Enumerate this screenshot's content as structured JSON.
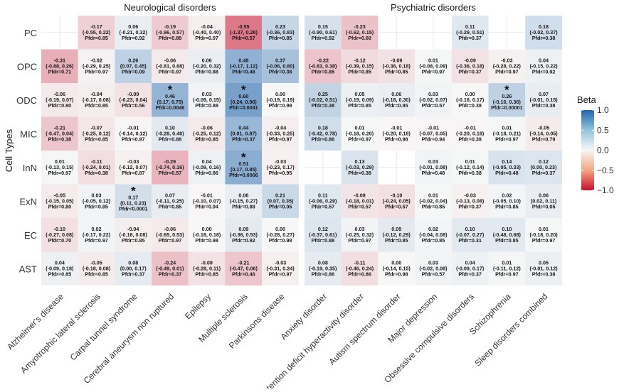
{
  "chart_data": {
    "type": "heatmap",
    "ylabel": "Cell Types",
    "panels": [
      {
        "title": "Neurological  disorders",
        "columns": [
          "Alzheimer's disease",
          "Amyotrophic lateral sclerosis",
          "Carpal tunnel syndrome",
          "Cerebral aneurysm non ruptured",
          "Epilepsy",
          "Multiple sclerosis",
          "Parkinsons disease"
        ]
      },
      {
        "title": "Psychiatric disorders",
        "columns": [
          "Anxiety disorder",
          "Attention deficit hyperactivity disorder",
          "Autism spectrum disorder",
          "Major depression",
          "Obsessive compulsive disorders",
          "Schizophrenia",
          "Sleep disorders combined"
        ]
      }
    ],
    "rows": [
      "PC",
      "OPC",
      "ODC",
      "MIC",
      "InN",
      "ExN",
      "EC",
      "AST"
    ],
    "legend": {
      "title": "Beta",
      "ticks": [
        "1.0",
        "0.5",
        "0.0",
        "−0.5",
        "−1.0"
      ],
      "range": [
        -1,
        1
      ],
      "low_color": "#c8102e",
      "mid_color": "#f7f7f7",
      "high_color": "#2166ac"
    },
    "grid": true,
    "cells": [
      {
        "row": "PC",
        "col": "Alzheimer's disease",
        "beta": null
      },
      {
        "row": "PC",
        "col": "Amyotrophic lateral sclerosis",
        "beta": -0.17,
        "ci": "(-0.55, 0.22)",
        "pfdr": "Pfdr=0.85"
      },
      {
        "row": "PC",
        "col": "Carpal tunnel syndrome",
        "beta": 0.06,
        "ci": "(-0.21, 0.32)",
        "pfdr": "Pfdr=0.92"
      },
      {
        "row": "PC",
        "col": "Cerebral aneurysm non ruptured",
        "beta": -0.19,
        "ci": "(-0.96, 0.57)",
        "pfdr": "Pfdr=0.88"
      },
      {
        "row": "PC",
        "col": "Epilepsy",
        "beta": -0.04,
        "ci": "(-0.40, 0.40)",
        "pfdr": "Pfdr=0.97"
      },
      {
        "row": "PC",
        "col": "Multiple sclerosis",
        "beta": -0.55,
        "ci": "(-1.37, 0.28)",
        "pfdr": "Pfdr=0.57"
      },
      {
        "row": "PC",
        "col": "Parkinsons disease",
        "beta": 0.23,
        "ci": "(-0.36, 0.83)",
        "pfdr": "Pfdr=0.85"
      },
      {
        "row": "PC",
        "col": "Anxiety disorder",
        "beta": 0.15,
        "ci": "(-0.90, 0.61)",
        "pfdr": "Pfdr=0.92"
      },
      {
        "row": "PC",
        "col": "Attention deficit hyperactivity disorder",
        "beta": -0.23,
        "ci": "(-0.62, 0.15)",
        "pfdr": "Pfdr=0.60"
      },
      {
        "row": "PC",
        "col": "Autism spectrum disorder",
        "beta": null
      },
      {
        "row": "PC",
        "col": "Major depression",
        "beta": null
      },
      {
        "row": "PC",
        "col": "Obsessive compulsive disorders",
        "beta": 0.11,
        "ci": "(-0.29, 0.51)",
        "pfdr": "Pfdr=0.37"
      },
      {
        "row": "PC",
        "col": "Schizophrenia",
        "beta": null
      },
      {
        "row": "PC",
        "col": "Sleep disorders combined",
        "beta": 0.18,
        "ci": "(-0.02, 0.37)",
        "pfdr": "Pfdr=0.38"
      },
      {
        "row": "OPC",
        "col": "Alzheimer's disease",
        "beta": -0.31,
        "ci": "(-0.88, 0.26)",
        "pfdr": "Pfdr=0.71"
      },
      {
        "row": "OPC",
        "col": "Amyotrophic lateral sclerosis",
        "beta": -0.02,
        "ci": "(-0.29, 0.25)",
        "pfdr": "Pfdr=0.97"
      },
      {
        "row": "OPC",
        "col": "Carpal tunnel syndrome",
        "beta": 0.26,
        "ci": "(0.07, 0.45)",
        "pfdr": "Pfdr=0.09"
      },
      {
        "row": "OPC",
        "col": "Cerebral aneurysm non ruptured",
        "beta": -0.06,
        "ci": "(-0.81, 0.68)",
        "pfdr": "Pfdr=0.97"
      },
      {
        "row": "OPC",
        "col": "Epilepsy",
        "beta": 0.06,
        "ci": "(-0.20, 0.32)",
        "pfdr": "Pfdr=0.88"
      },
      {
        "row": "OPC",
        "col": "Multiple sclerosis",
        "beta": 0.48,
        "ci": "(-0.17, 1.12)",
        "pfdr": "Pfdr=0.48"
      },
      {
        "row": "OPC",
        "col": "Parkinsons disease",
        "beta": 0.37,
        "ci": "(-0.06, 0.80)",
        "pfdr": "Pfdr=0.38"
      },
      {
        "row": "OPC",
        "col": "Anxiety disorder",
        "beta": -0.22,
        "ci": "(-0.83, 0.38)",
        "pfdr": "Pfdr=0.85"
      },
      {
        "row": "OPC",
        "col": "Attention deficit hyperactivity disorder",
        "beta": -0.12,
        "ci": "(-0.39, 0.15)",
        "pfdr": "Pfdr=0.85"
      },
      {
        "row": "OPC",
        "col": "Autism spectrum disorder",
        "beta": -0.09,
        "ci": "(-0.36, 0.18)",
        "pfdr": "Pfdr=0.85"
      },
      {
        "row": "OPC",
        "col": "Major depression",
        "beta": 0.01,
        "ci": "(-0.08, 0.09)",
        "pfdr": "Pfdr=0.97"
      },
      {
        "row": "OPC",
        "col": "Obsessive compulsive disorders",
        "beta": -0.09,
        "ci": "(-0.36, 0.18)",
        "pfdr": "Pfdr=0.37"
      },
      {
        "row": "OPC",
        "col": "Schizophrenia",
        "beta": -0.03,
        "ci": "(-0.28, 0.22)",
        "pfdr": "Pfdr=0.97"
      },
      {
        "row": "OPC",
        "col": "Sleep disorders combined",
        "beta": 0.04,
        "ci": "(-0.15, 0.22)",
        "pfdr": "Pfdr=0.92"
      },
      {
        "row": "ODC",
        "col": "Alzheimer's disease",
        "beta": -0.06,
        "ci": "(-0.19, 0.07)",
        "pfdr": "Pfdr=0.80"
      },
      {
        "row": "ODC",
        "col": "Amyotrophic lateral sclerosis",
        "beta": -0.04,
        "ci": "(-0.17, 0.08)",
        "pfdr": "Pfdr=0.85"
      },
      {
        "row": "ODC",
        "col": "Carpal tunnel syndrome",
        "beta": -0.09,
        "ci": "(-0.23, 0.04)",
        "pfdr": "Pfdr=0.56"
      },
      {
        "row": "ODC",
        "col": "Cerebral aneurysm non ruptured",
        "beta": 0.46,
        "ci": "(0.17, 0.75)",
        "pfdr": "Pfdr=0.0046",
        "star": true
      },
      {
        "row": "ODC",
        "col": "Epilepsy",
        "beta": 0.03,
        "ci": "(-0.09, 0.15)",
        "pfdr": "Pfdr=0.88"
      },
      {
        "row": "ODC",
        "col": "Multiple sclerosis",
        "beta": 0.6,
        "ci": "(0.24, 0.96)",
        "pfdr": "Pfdr=0.0041",
        "star": true
      },
      {
        "row": "ODC",
        "col": "Parkinsons disease",
        "beta": 0.0,
        "ci": "(-0.19, 0.19)",
        "pfdr": "Pfdr=0.98"
      },
      {
        "row": "ODC",
        "col": "Anxiety disorder",
        "beta": 0.25,
        "ci": "(-0.02, 0.51)",
        "pfdr": "Pfdr=0.38"
      },
      {
        "row": "ODC",
        "col": "Attention deficit hyperactivity disorder",
        "beta": 0.05,
        "ci": "(-0.19, 0.09)",
        "pfdr": "Pfdr=0.85"
      },
      {
        "row": "ODC",
        "col": "Autism spectrum disorder",
        "beta": 0.06,
        "ci": "(-0.18, 0.30)",
        "pfdr": "Pfdr=0.85"
      },
      {
        "row": "ODC",
        "col": "Major depression",
        "beta": 0.03,
        "ci": "(-0.02, 0.07)",
        "pfdr": "Pfdr=0.57"
      },
      {
        "row": "ODC",
        "col": "Obsessive compulsive disorders",
        "beta": 0.0,
        "ci": "(-0.16, 0.17)",
        "pfdr": "Pfdr=0.38"
      },
      {
        "row": "ODC",
        "col": "Schizophrenia",
        "beta": 0.26,
        "ci": "(-0.16, 0.36)",
        "pfdr": "Pfdr=0.00001",
        "star": true
      },
      {
        "row": "ODC",
        "col": "Sleep disorders combined",
        "beta": 0.07,
        "ci": "(-0.01, 0.15)",
        "pfdr": "Pfdr=0.38"
      },
      {
        "row": "MIC",
        "col": "Alzheimer's disease",
        "beta": -0.21,
        "ci": "(-0.47, 0.04)",
        "pfdr": "Pfdr=0.38"
      },
      {
        "row": "MIC",
        "col": "Amyotrophic lateral sclerosis",
        "beta": -0.07,
        "ci": "(-0.25, 0.12)",
        "pfdr": "Pfdr=0.85"
      },
      {
        "row": "MIC",
        "col": "Carpal tunnel syndrome",
        "beta": -0.01,
        "ci": "(-0.14, 0.12)",
        "pfdr": "Pfdr=0.97"
      },
      {
        "row": "MIC",
        "col": "Cerebral aneurysm non ruptured",
        "beta": 0.1,
        "ci": "(-0.28, 0.48)",
        "pfdr": "Pfdr=0.88"
      },
      {
        "row": "MIC",
        "col": "Epilepsy",
        "beta": -0.06,
        "ci": "(-0.25, 0.12)",
        "pfdr": "Pfdr=0.85"
      },
      {
        "row": "MIC",
        "col": "Multiple sclerosis",
        "beta": 0.44,
        "ci": "(0.01, 0.87)",
        "pfdr": "Pfdr=0.37"
      },
      {
        "row": "MIC",
        "col": "Parkinsons disease",
        "beta": -0.04,
        "ci": "(-0.33, 0.25)",
        "pfdr": "Pfdr=0.97"
      },
      {
        "row": "MIC",
        "col": "Anxiety disorder",
        "beta": 0.18,
        "ci": "(-0.42, 0.78)",
        "pfdr": "Pfdr=0.86"
      },
      {
        "row": "MIC",
        "col": "Attention deficit hyperactivity disorder",
        "beta": 0.01,
        "ci": "(-0.18, 0.20)",
        "pfdr": "Pfdr=0.97"
      },
      {
        "row": "MIC",
        "col": "Autism spectrum disorder",
        "beta": -0.01,
        "ci": "(-0.20, 0.18)",
        "pfdr": "Pfdr=0.98"
      },
      {
        "row": "MIC",
        "col": "Major depression",
        "beta": -0.01,
        "ci": "(-0.07, 0.05)",
        "pfdr": "Pfdr=0.94"
      },
      {
        "row": "MIC",
        "col": "Obsessive compulsive disorders",
        "beta": -0.01,
        "ci": "(-0.20, 0.18)",
        "pfdr": "Pfdr=0.38"
      },
      {
        "row": "MIC",
        "col": "Schizophrenia",
        "beta": 0.01,
        "ci": "(-0.18, 0.21)",
        "pfdr": "Pfdr=0.97"
      },
      {
        "row": "MIC",
        "col": "Sleep disorders combined",
        "beta": -0.05,
        "ci": "(-0.14, 0.05)",
        "pfdr": "Pfdr=0.79"
      },
      {
        "row": "InN",
        "col": "Alzheimer's disease",
        "beta": 0.01,
        "ci": "(-0.13, 0.15)",
        "pfdr": "Pfdr=0.97"
      },
      {
        "row": "InN",
        "col": "Amyotrophic lateral sclerosis",
        "beta": -0.11,
        "ci": "(-0.24, 0.01)",
        "pfdr": "Pfdr=0.38"
      },
      {
        "row": "InN",
        "col": "Carpal tunnel syndrome",
        "beta": -0.03,
        "ci": "(-0.12, 0.07)",
        "pfdr": "Pfdr=0.87"
      },
      {
        "row": "InN",
        "col": "Cerebral aneurysm non ruptured",
        "beta": -0.29,
        "ci": "(-0.74, 0.16)",
        "pfdr": "Pfdr=0.57"
      },
      {
        "row": "InN",
        "col": "Epilepsy",
        "beta": 0.04,
        "ci": "(-0.09, 0.16)",
        "pfdr": "Pfdr=0.86"
      },
      {
        "row": "InN",
        "col": "Multiple sclerosis",
        "beta": 0.51,
        "ci": "(0.17, 0.85)",
        "pfdr": "Pfdr=0.0066",
        "star": true
      },
      {
        "row": "InN",
        "col": "Parkinsons disease",
        "beta": -0.03,
        "ci": "(-0.23, 0.17)",
        "pfdr": "Pfdr=0.95"
      },
      {
        "row": "InN",
        "col": "Anxiety disorder",
        "beta": null
      },
      {
        "row": "InN",
        "col": "Attention deficit hyperactivity disorder",
        "beta": 0.13,
        "ci": "(-0.03, 0.29)",
        "pfdr": "Pfdr=0.38"
      },
      {
        "row": "InN",
        "col": "Autism spectrum disorder",
        "beta": null
      },
      {
        "row": "InN",
        "col": "Major depression",
        "beta": 0.03,
        "ci": "(-0.01, 0.08)",
        "pfdr": "Pfdr=0.48"
      },
      {
        "row": "InN",
        "col": "Obsessive compulsive disorders",
        "beta": 0.01,
        "ci": "(-0.12, 0.14)",
        "pfdr": "Pfdr=0.38"
      },
      {
        "row": "InN",
        "col": "Schizophrenia",
        "beta": 0.14,
        "ci": "(-0.05, 0.33)",
        "pfdr": "Pfdr=0.48"
      },
      {
        "row": "InN",
        "col": "Sleep disorders combined",
        "beta": 0.12,
        "ci": "(0.00, 0.23)",
        "pfdr": "Pfdr=0.37"
      },
      {
        "row": "ExN",
        "col": "Alzheimer's disease",
        "beta": -0.05,
        "ci": "(-0.15, 0.05)",
        "pfdr": "Pfdr=0.80"
      },
      {
        "row": "ExN",
        "col": "Amyotrophic lateral sclerosis",
        "beta": 0.03,
        "ci": "(-0.05, 0.12)",
        "pfdr": "Pfdr=0.85"
      },
      {
        "row": "ExN",
        "col": "Carpal tunnel syndrome",
        "beta": 0.17,
        "ci": "(0.11, 0.23)",
        "pfdr": "Pfdr<0.0001",
        "star": true
      },
      {
        "row": "ExN",
        "col": "Cerebral aneurysm non ruptured",
        "beta": 0.07,
        "ci": "(-0.11, 0.25)",
        "pfdr": "Pfdr=0.85"
      },
      {
        "row": "ExN",
        "col": "Epilepsy",
        "beta": -0.01,
        "ci": "(-0.10, 0.07)",
        "pfdr": "Pfdr=0.94"
      },
      {
        "row": "ExN",
        "col": "Multiple sclerosis",
        "beta": 0.06,
        "ci": "(-0.15, 0.27)",
        "pfdr": "Pfdr=0.88"
      },
      {
        "row": "ExN",
        "col": "Parkinsons disease",
        "beta": 0.21,
        "ci": "(0.07, 0.35)",
        "pfdr": "Pfdr=0.05"
      },
      {
        "row": "ExN",
        "col": "Anxiety disorder",
        "beta": 0.11,
        "ci": "(-0.06, 0.29)",
        "pfdr": "Pfdr=0.57"
      },
      {
        "row": "ExN",
        "col": "Attention deficit hyperactivity disorder",
        "beta": -0.08,
        "ci": "(-0.18, 0.01)",
        "pfdr": "Pfdr=0.57"
      },
      {
        "row": "ExN",
        "col": "Autism spectrum disorder",
        "beta": -0.1,
        "ci": "(-0.24, 0.05)",
        "pfdr": "Pfdr=0.57"
      },
      {
        "row": "ExN",
        "col": "Major depression",
        "beta": 0.01,
        "ci": "(-0.02, 0.04)",
        "pfdr": "Pfdr=0.85"
      },
      {
        "row": "ExN",
        "col": "Obsessive compulsive disorders",
        "beta": -0.03,
        "ci": "(-0.13, 0.08)",
        "pfdr": "Pfdr=0.37"
      },
      {
        "row": "ExN",
        "col": "Schizophrenia",
        "beta": 0.02,
        "ci": "(-0.05, 0.10)",
        "pfdr": "Pfdr=0.85"
      },
      {
        "row": "ExN",
        "col": "Sleep disorders combined",
        "beta": 0.06,
        "ci": "(0.02, 0.11)",
        "pfdr": "Pfdr=0.05"
      },
      {
        "row": "EC",
        "col": "Alzheimer's disease",
        "beta": -0.1,
        "ci": "(-0.27, 0.08)",
        "pfdr": "Pfdr=0.70"
      },
      {
        "row": "EC",
        "col": "Amyotrophic lateral sclerosis",
        "beta": 0.02,
        "ci": "(-0.17, 0.22)",
        "pfdr": "Pfdr=0.97"
      },
      {
        "row": "EC",
        "col": "Carpal tunnel syndrome",
        "beta": -0.04,
        "ci": "(-0.16, 0.08)",
        "pfdr": "Pfdr=0.85"
      },
      {
        "row": "EC",
        "col": "Cerebral aneurysm non ruptured",
        "beta": -0.06,
        "ci": "(-0.65, 0.53)",
        "pfdr": "Pfdr=0.97"
      },
      {
        "row": "EC",
        "col": "Epilepsy",
        "beta": 0.0,
        "ci": "(-0.18, 0.18)",
        "pfdr": "Pfdr=0.98"
      },
      {
        "row": "EC",
        "col": "Multiple sclerosis",
        "beta": 0.09,
        "ci": "(-0.36, 0.53)",
        "pfdr": "Pfdr=0.92"
      },
      {
        "row": "EC",
        "col": "Parkinsons disease",
        "beta": 0.0,
        "ci": "(-0.28, 0.27)",
        "pfdr": "Pfdr=0.98"
      },
      {
        "row": "EC",
        "col": "Anxiety disorder",
        "beta": 0.12,
        "ci": "(-0.37, 0.61)",
        "pfdr": "Pfdr=0.88"
      },
      {
        "row": "EC",
        "col": "Attention deficit hyperactivity disorder",
        "beta": 0.03,
        "ci": "(-0.25, 0.32)",
        "pfdr": "Pfdr=0.97"
      },
      {
        "row": "EC",
        "col": "Autism spectrum disorder",
        "beta": 0.09,
        "ci": "(-0.12, 0.29)",
        "pfdr": "Pfdr=0.85"
      },
      {
        "row": "EC",
        "col": "Major depression",
        "beta": 0.02,
        "ci": "(-0.04, 0.08)",
        "pfdr": "Pfdr=0.85"
      },
      {
        "row": "EC",
        "col": "Obsessive compulsive disorders",
        "beta": 0.1,
        "ci": "(-0.07, 0.27)",
        "pfdr": "Pfdr=0.31"
      },
      {
        "row": "EC",
        "col": "Schizophrenia",
        "beta": 0.1,
        "ci": "(-0.48, 0.68)",
        "pfdr": "Pfdr=0.85"
      },
      {
        "row": "EC",
        "col": "Sleep disorders combined",
        "beta": 0.01,
        "ci": "(-0.18, 0.20)",
        "pfdr": "Pfdr=0.97"
      },
      {
        "row": "AST",
        "col": "Alzheimer's disease",
        "beta": 0.04,
        "ci": "(-0.09, 0.18)",
        "pfdr": "Pfdr=0.85"
      },
      {
        "row": "AST",
        "col": "Amyotrophic lateral sclerosis",
        "beta": -0.05,
        "ci": "(-0.18, 0.08)",
        "pfdr": "Pfdr=0.85"
      },
      {
        "row": "AST",
        "col": "Carpal tunnel syndrome",
        "beta": 0.08,
        "ci": "(0.00, 0.17)",
        "pfdr": "Pfdr=0.37"
      },
      {
        "row": "AST",
        "col": "Cerebral aneurysm non ruptured",
        "beta": -0.24,
        "ci": "(-0.49, 0.01)",
        "pfdr": "Pfdr=0.37"
      },
      {
        "row": "AST",
        "col": "Epilepsy",
        "beta": -0.09,
        "ci": "(-0.28, 0.11)",
        "pfdr": "Pfdr=0.85"
      },
      {
        "row": "AST",
        "col": "Multiple sclerosis",
        "beta": -0.21,
        "ci": "(-0.47, 0.06)",
        "pfdr": "Pfdr=0.46"
      },
      {
        "row": "AST",
        "col": "Parkinsons disease",
        "beta": -0.03,
        "ci": "(-0.31, 0.24)",
        "pfdr": "Pfdr=0.97"
      },
      {
        "row": "AST",
        "col": "Anxiety disorder",
        "beta": 0.08,
        "ci": "(-0.19, 0.35)",
        "pfdr": "Pfdr=0.86"
      },
      {
        "row": "AST",
        "col": "Attention deficit hyperactivity disorder",
        "beta": -0.11,
        "ci": "(-0.46, 0.24)",
        "pfdr": "Pfdr=0.86"
      },
      {
        "row": "AST",
        "col": "Autism spectrum disorder",
        "beta": 0.0,
        "ci": "(-0.14, 0.15)",
        "pfdr": "Pfdr=0.98"
      },
      {
        "row": "AST",
        "col": "Major depression",
        "beta": 0.03,
        "ci": "(-0.02, 0.08)",
        "pfdr": "Pfdr=0.57"
      },
      {
        "row": "AST",
        "col": "Obsessive compulsive disorders",
        "beta": 0.04,
        "ci": "(-0.09, 0.17)",
        "pfdr": "Pfdr=0.37"
      },
      {
        "row": "AST",
        "col": "Schizophrenia",
        "beta": 0.01,
        "ci": "(-0.11, 0.12)",
        "pfdr": "Pfdr=0.97"
      },
      {
        "row": "AST",
        "col": "Sleep disorders combined",
        "beta": 0.05,
        "ci": "(-0.01, 0.12)",
        "pfdr": "Pfdr=0.38"
      }
    ]
  }
}
